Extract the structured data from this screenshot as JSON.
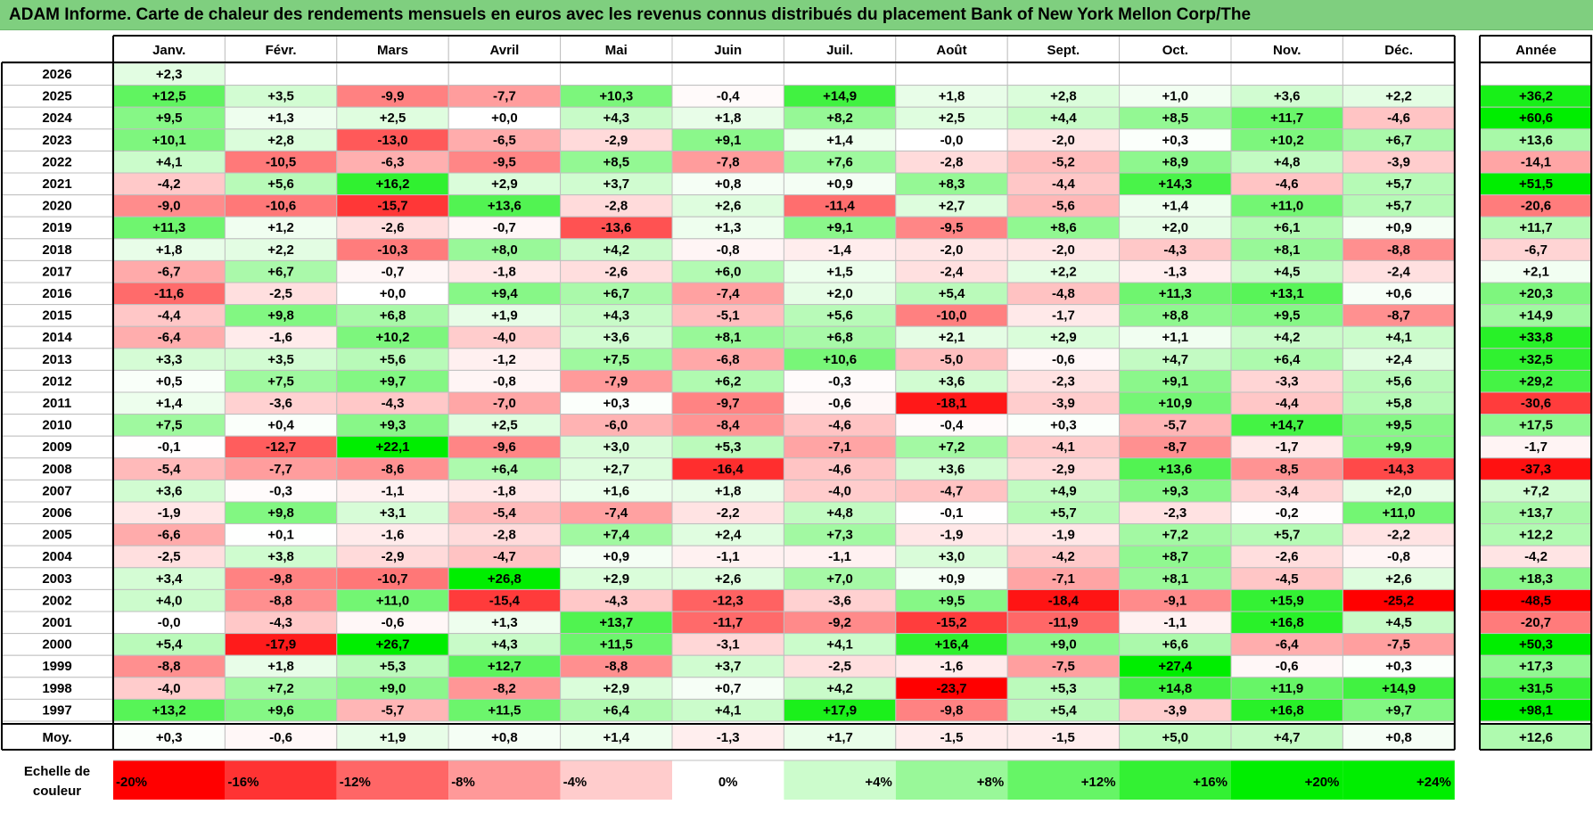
{
  "title": "ADAM Informe. Carte de chaleur des rendements mensuels en euros avec les revenus connus distribués du placement Bank of New York Mellon Corp/The",
  "chart_data": {
    "type": "heatmap",
    "title": "ADAM Informe. Carte de chaleur des rendements mensuels en euros avec les revenus connus distribués du placement Bank of New York Mellon Corp/The",
    "months": [
      "Janv.",
      "Févr.",
      "Mars",
      "Avril",
      "Mai",
      "Juin",
      "Juil.",
      "Août",
      "Sept.",
      "Oct.",
      "Nov.",
      "Déc."
    ],
    "year_header": "Année",
    "rows": [
      {
        "year": "2026",
        "values": [
          "+2,3",
          "",
          "",
          "",
          "",
          "",
          "",
          "",
          "",
          "",
          "",
          ""
        ],
        "annual": ""
      },
      {
        "year": "2025",
        "values": [
          "+12,5",
          "+3,5",
          "-9,9",
          "-7,7",
          "+10,3",
          "-0,4",
          "+14,9",
          "+1,8",
          "+2,8",
          "+1,0",
          "+3,6",
          "+2,2"
        ],
        "annual": "+36,2"
      },
      {
        "year": "2024",
        "values": [
          "+9,5",
          "+1,3",
          "+2,5",
          "+0,0",
          "+4,3",
          "+1,8",
          "+8,2",
          "+2,5",
          "+4,4",
          "+8,5",
          "+11,7",
          "-4,6"
        ],
        "annual": "+60,6"
      },
      {
        "year": "2023",
        "values": [
          "+10,1",
          "+2,8",
          "-13,0",
          "-6,5",
          "-2,9",
          "+9,1",
          "+1,4",
          "-0,0",
          "-2,0",
          "+0,3",
          "+10,2",
          "+6,7"
        ],
        "annual": "+13,6"
      },
      {
        "year": "2022",
        "values": [
          "+4,1",
          "-10,5",
          "-6,3",
          "-9,5",
          "+8,5",
          "-7,8",
          "+7,6",
          "-2,8",
          "-5,2",
          "+8,9",
          "+4,8",
          "-3,9"
        ],
        "annual": "-14,1"
      },
      {
        "year": "2021",
        "values": [
          "-4,2",
          "+5,6",
          "+16,2",
          "+2,9",
          "+3,7",
          "+0,8",
          "+0,9",
          "+8,3",
          "-4,4",
          "+14,3",
          "-4,6",
          "+5,7"
        ],
        "annual": "+51,5"
      },
      {
        "year": "2020",
        "values": [
          "-9,0",
          "-10,6",
          "-15,7",
          "+13,6",
          "-2,8",
          "+2,6",
          "-11,4",
          "+2,7",
          "-5,6",
          "+1,4",
          "+11,0",
          "+5,7"
        ],
        "annual": "-20,6"
      },
      {
        "year": "2019",
        "values": [
          "+11,3",
          "+1,2",
          "-2,6",
          "-0,7",
          "-13,6",
          "+1,3",
          "+9,1",
          "-9,5",
          "+8,6",
          "+2,0",
          "+6,1",
          "+0,9"
        ],
        "annual": "+11,7"
      },
      {
        "year": "2018",
        "values": [
          "+1,8",
          "+2,2",
          "-10,3",
          "+8,0",
          "+4,2",
          "-0,8",
          "-1,4",
          "-2,0",
          "-2,0",
          "-4,3",
          "+8,1",
          "-8,8"
        ],
        "annual": "-6,7"
      },
      {
        "year": "2017",
        "values": [
          "-6,7",
          "+6,7",
          "-0,7",
          "-1,8",
          "-2,6",
          "+6,0",
          "+1,5",
          "-2,4",
          "+2,2",
          "-1,3",
          "+4,5",
          "-2,4"
        ],
        "annual": "+2,1"
      },
      {
        "year": "2016",
        "values": [
          "-11,6",
          "-2,5",
          "+0,0",
          "+9,4",
          "+6,7",
          "-7,4",
          "+2,0",
          "+5,4",
          "-4,8",
          "+11,3",
          "+13,1",
          "+0,6"
        ],
        "annual": "+20,3"
      },
      {
        "year": "2015",
        "values": [
          "-4,4",
          "+9,8",
          "+6,8",
          "+1,9",
          "+4,3",
          "-5,1",
          "+5,6",
          "-10,0",
          "-1,7",
          "+8,8",
          "+9,5",
          "-8,7"
        ],
        "annual": "+14,9"
      },
      {
        "year": "2014",
        "values": [
          "-6,4",
          "-1,6",
          "+10,2",
          "-4,0",
          "+3,6",
          "+8,1",
          "+6,8",
          "+2,1",
          "+2,9",
          "+1,1",
          "+4,2",
          "+4,1"
        ],
        "annual": "+33,8"
      },
      {
        "year": "2013",
        "values": [
          "+3,3",
          "+3,5",
          "+5,6",
          "-1,2",
          "+7,5",
          "-6,8",
          "+10,6",
          "-5,0",
          "-0,6",
          "+4,7",
          "+6,4",
          "+2,4"
        ],
        "annual": "+32,5"
      },
      {
        "year": "2012",
        "values": [
          "+0,5",
          "+7,5",
          "+9,7",
          "-0,8",
          "-7,9",
          "+6,2",
          "-0,3",
          "+3,6",
          "-2,3",
          "+9,1",
          "-3,3",
          "+5,6"
        ],
        "annual": "+29,2"
      },
      {
        "year": "2011",
        "values": [
          "+1,4",
          "-3,6",
          "-4,3",
          "-7,0",
          "+0,3",
          "-9,7",
          "-0,6",
          "-18,1",
          "-3,9",
          "+10,9",
          "-4,4",
          "+5,8"
        ],
        "annual": "-30,6"
      },
      {
        "year": "2010",
        "values": [
          "+7,5",
          "+0,4",
          "+9,3",
          "+2,5",
          "-6,0",
          "-8,4",
          "-4,6",
          "-0,4",
          "+0,3",
          "-5,7",
          "+14,7",
          "+9,5"
        ],
        "annual": "+17,5"
      },
      {
        "year": "2009",
        "values": [
          "-0,1",
          "-12,7",
          "+22,1",
          "-9,6",
          "+3,0",
          "+5,3",
          "-7,1",
          "+7,2",
          "-4,1",
          "-8,7",
          "-1,7",
          "+9,9"
        ],
        "annual": "-1,7"
      },
      {
        "year": "2008",
        "values": [
          "-5,4",
          "-7,7",
          "-8,6",
          "+6,4",
          "+2,7",
          "-16,4",
          "-4,6",
          "+3,6",
          "-2,9",
          "+13,6",
          "-8,5",
          "-14,3"
        ],
        "annual": "-37,3"
      },
      {
        "year": "2007",
        "values": [
          "+3,6",
          "-0,3",
          "-1,1",
          "-1,8",
          "+1,6",
          "+1,8",
          "-4,0",
          "-4,7",
          "+4,9",
          "+9,3",
          "-3,4",
          "+2,0"
        ],
        "annual": "+7,2"
      },
      {
        "year": "2006",
        "values": [
          "-1,9",
          "+9,8",
          "+3,1",
          "-5,4",
          "-7,4",
          "-2,2",
          "+4,8",
          "-0,1",
          "+5,7",
          "-2,3",
          "-0,2",
          "+11,0"
        ],
        "annual": "+13,7"
      },
      {
        "year": "2005",
        "values": [
          "-6,6",
          "+0,1",
          "-1,6",
          "-2,8",
          "+7,4",
          "+2,4",
          "+7,3",
          "-1,9",
          "-1,9",
          "+7,2",
          "+5,7",
          "-2,2"
        ],
        "annual": "+12,2"
      },
      {
        "year": "2004",
        "values": [
          "-2,5",
          "+3,8",
          "-2,9",
          "-4,7",
          "+0,9",
          "-1,1",
          "-1,1",
          "+3,0",
          "-4,2",
          "+8,7",
          "-2,6",
          "-0,8"
        ],
        "annual": "-4,2"
      },
      {
        "year": "2003",
        "values": [
          "+3,4",
          "-9,8",
          "-10,7",
          "+26,8",
          "+2,9",
          "+2,6",
          "+7,0",
          "+0,9",
          "-7,1",
          "+8,1",
          "-4,5",
          "+2,6"
        ],
        "annual": "+18,3"
      },
      {
        "year": "2002",
        "values": [
          "+4,0",
          "-8,8",
          "+11,0",
          "-15,4",
          "-4,3",
          "-12,3",
          "-3,6",
          "+9,5",
          "-18,4",
          "-9,1",
          "+15,9",
          "-25,2"
        ],
        "annual": "-48,5"
      },
      {
        "year": "2001",
        "values": [
          "-0,0",
          "-4,3",
          "-0,6",
          "+1,3",
          "+13,7",
          "-11,7",
          "-9,2",
          "-15,2",
          "-11,9",
          "-1,1",
          "+16,8",
          "+4,5"
        ],
        "annual": "-20,7"
      },
      {
        "year": "2000",
        "values": [
          "+5,4",
          "-17,9",
          "+26,7",
          "+4,3",
          "+11,5",
          "-3,1",
          "+4,1",
          "+16,4",
          "+9,0",
          "+6,6",
          "-6,4",
          "-7,5"
        ],
        "annual": "+50,3"
      },
      {
        "year": "1999",
        "values": [
          "-8,8",
          "+1,8",
          "+5,3",
          "+12,7",
          "-8,8",
          "+3,7",
          "-2,5",
          "-1,6",
          "-7,5",
          "+27,4",
          "-0,6",
          "+0,3"
        ],
        "annual": "+17,3"
      },
      {
        "year": "1998",
        "values": [
          "-4,0",
          "+7,2",
          "+9,0",
          "-8,2",
          "+2,9",
          "+0,7",
          "+4,2",
          "-23,7",
          "+5,3",
          "+14,8",
          "+11,9",
          "+14,9"
        ],
        "annual": "+31,5"
      },
      {
        "year": "1997",
        "values": [
          "+13,2",
          "+9,6",
          "-5,7",
          "+11,5",
          "+6,4",
          "+4,1",
          "+17,9",
          "-9,8",
          "+5,4",
          "-3,9",
          "+16,8",
          "+9,7"
        ],
        "annual": "+98,1"
      }
    ],
    "average": {
      "label": "Moy.",
      "values": [
        "+0,3",
        "-0,6",
        "+1,9",
        "+0,8",
        "+1,4",
        "-1,3",
        "+1,7",
        "-1,5",
        "-1,5",
        "+5,0",
        "+4,7",
        "+0,8"
      ],
      "annual": "+12,6"
    },
    "scale": {
      "label_line1": "Echelle de",
      "label_line2": "couleur",
      "labels": [
        "-20%",
        "-16%",
        "-12%",
        "-8%",
        "-4%",
        "0%",
        "+4%",
        "+8%",
        "+12%",
        "+16%",
        "+20%",
        "+24%"
      ],
      "values": [
        -20,
        -16,
        -12,
        -8,
        -4,
        0,
        4,
        8,
        12,
        16,
        20,
        24
      ]
    },
    "colors": {
      "negative_max": "#ff0000",
      "positive_max": "#00ee00",
      "neutral": "#ffffff",
      "title_bar": "#7fcf7f",
      "grid": "#bfbfbf"
    }
  }
}
